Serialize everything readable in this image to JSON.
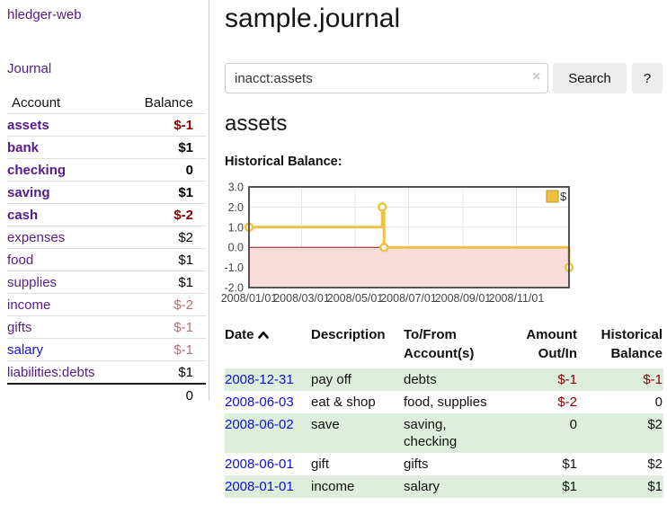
{
  "app": {
    "title": "hledger-web"
  },
  "colors": {
    "link_visited": "#551a8b",
    "link_unvisited": "#0e0edd",
    "negative": "#8b0000",
    "negative_muted": "#bf6a6e",
    "row_stripe_green": "#ddeedd",
    "series_gold": "#edc240"
  },
  "sidebar": {
    "nav_journal": "Journal",
    "accounts_table": {
      "headers": {
        "account": "Account",
        "balance": "Balance"
      },
      "rows": [
        {
          "name": "assets",
          "depth": 1,
          "bold": true,
          "link": "visited",
          "balance": "$-1",
          "balance_class": "neg-bold"
        },
        {
          "name": "bank",
          "depth": 2,
          "bold": true,
          "link": "visited",
          "balance": "$1",
          "balance_class": "pos-bold"
        },
        {
          "name": "checking",
          "depth": 3,
          "bold": true,
          "link": "visited",
          "balance": "0",
          "balance_class": "pos-bold"
        },
        {
          "name": "saving",
          "depth": 3,
          "bold": true,
          "link": "visited",
          "balance": "$1",
          "balance_class": "pos-bold"
        },
        {
          "name": "cash",
          "depth": 2,
          "bold": true,
          "link": "visited",
          "balance": "$-2",
          "balance_class": "neg-bold"
        },
        {
          "name": "expenses",
          "depth": 1,
          "bold": false,
          "link": "visited",
          "balance": "$2",
          "balance_class": "pos"
        },
        {
          "name": "food",
          "depth": 2,
          "bold": false,
          "link": "visited",
          "balance": "$1",
          "balance_class": "pos"
        },
        {
          "name": "supplies",
          "depth": 2,
          "bold": false,
          "link": "visited",
          "balance": "$1",
          "balance_class": "pos"
        },
        {
          "name": "income",
          "depth": 1,
          "bold": false,
          "link": "visited",
          "balance": "$-2",
          "balance_class": "neg-muted"
        },
        {
          "name": "gifts",
          "depth": 2,
          "bold": false,
          "link": "visited",
          "balance": "$-1",
          "balance_class": "neg-muted"
        },
        {
          "name": "salary",
          "depth": 2,
          "bold": false,
          "link": "unvisited",
          "balance": "$-1",
          "balance_class": "neg-muted"
        },
        {
          "name": "liabilities:debts",
          "depth": 1,
          "bold": false,
          "link": "visited",
          "balance": "$1",
          "balance_class": "pos"
        }
      ],
      "total": "0"
    }
  },
  "main": {
    "title": "sample.journal",
    "search": {
      "value": "inacct:assets",
      "clear_icon": "×",
      "search_label": "Search",
      "help_label": "?"
    },
    "account_heading": "assets",
    "register": {
      "headers": {
        "date": "Date",
        "description": "Description",
        "accounts": "To/From Account(s)",
        "amount": "Amount Out/In",
        "balance": "Historical Balance"
      },
      "rows": [
        {
          "date": "2008-12-31",
          "description": "pay off",
          "accounts": "debts",
          "amount": "$-1",
          "balance": "$-1"
        },
        {
          "date": "2008-06-03",
          "description": "eat & shop",
          "accounts": "food, supplies",
          "amount": "$-2",
          "balance": "0"
        },
        {
          "date": "2008-06-02",
          "description": "save",
          "accounts": "saving, checking",
          "amount": "0",
          "balance": "$2"
        },
        {
          "date": "2008-06-01",
          "description": "gift",
          "accounts": "gifts",
          "amount": "$1",
          "balance": "$2"
        },
        {
          "date": "2008-01-01",
          "description": "income",
          "accounts": "salary",
          "amount": "$1",
          "balance": "$1"
        }
      ]
    }
  },
  "chart_data": {
    "type": "line",
    "title": "Historical Balance:",
    "step": true,
    "x_type": "date",
    "xrange": [
      "2008-01-01",
      "2008-12-31"
    ],
    "ylim": [
      -2,
      3
    ],
    "yticks": [
      "3.0",
      "2.0",
      "1.0",
      "0.0",
      "-1.0",
      "-2.0"
    ],
    "xticks": [
      "2008/01/01",
      "2008/03/01",
      "2008/05/01",
      "2008/07/01",
      "2008/09/01",
      "2008/11/01"
    ],
    "series": [
      {
        "name": "$",
        "color": "#edc240",
        "points": [
          [
            "2008-01-01",
            1
          ],
          [
            "2008-06-01",
            2
          ],
          [
            "2008-06-03",
            0
          ],
          [
            "2008-12-31",
            -1
          ]
        ]
      }
    ],
    "legend_position": "top-right",
    "grid": true,
    "negative_region_color": "#fbdcdc",
    "zero_line_color": "#8b1c1c",
    "border_color": "#545454"
  }
}
